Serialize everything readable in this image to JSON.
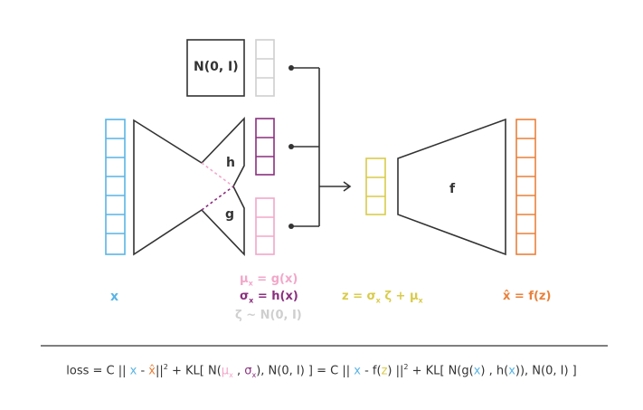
{
  "diagram": {
    "prior_box_label": "N(0, I)",
    "encoder_h_label": "h",
    "encoder_g_label": "g",
    "decoder_label": "f",
    "input_label": "x",
    "mu_eq": {
      "sym": "μ",
      "sub": "x",
      "rest": " = g(x)"
    },
    "sigma_eq": {
      "sym": "σ",
      "sub": "x",
      "rest": " = h(x)"
    },
    "zeta_eq": "ζ ~ N(0, I)",
    "z_eq": {
      "a": "z = σ",
      "sub1": "x",
      "b": " ζ + μ",
      "sub2": "x"
    },
    "xhat_eq": "x̂ = f(z)",
    "colors": {
      "input": "#5ab4e5",
      "mu": "#f2a7c9",
      "sigma": "#8b2f7f",
      "zeta": "#cfcfcf",
      "z": "#d9cb4a",
      "output": "#e9803b",
      "line": "#333333"
    }
  },
  "loss": {
    "p1": "loss  =  C || ",
    "x1": "x",
    "p2": " - ",
    "xhat1": "x̂",
    "p3": "||",
    "sq1": "2",
    "p4": "  +  KL[ N(",
    "mu": "μ",
    "mu_sub": "x",
    "p5": " , ",
    "sig": "σ",
    "sig_sub": "x",
    "p6": "), N(0, I) ]   =   C || ",
    "x2": "x",
    "p7": " - f(",
    "z": "z",
    "p8": ") ||",
    "sq2": "2",
    "p9": "  +  KL[ N(g(",
    "x3": "x",
    "p10": ") , h(",
    "x4": "x",
    "p11": ")), N(0, I) ]"
  }
}
